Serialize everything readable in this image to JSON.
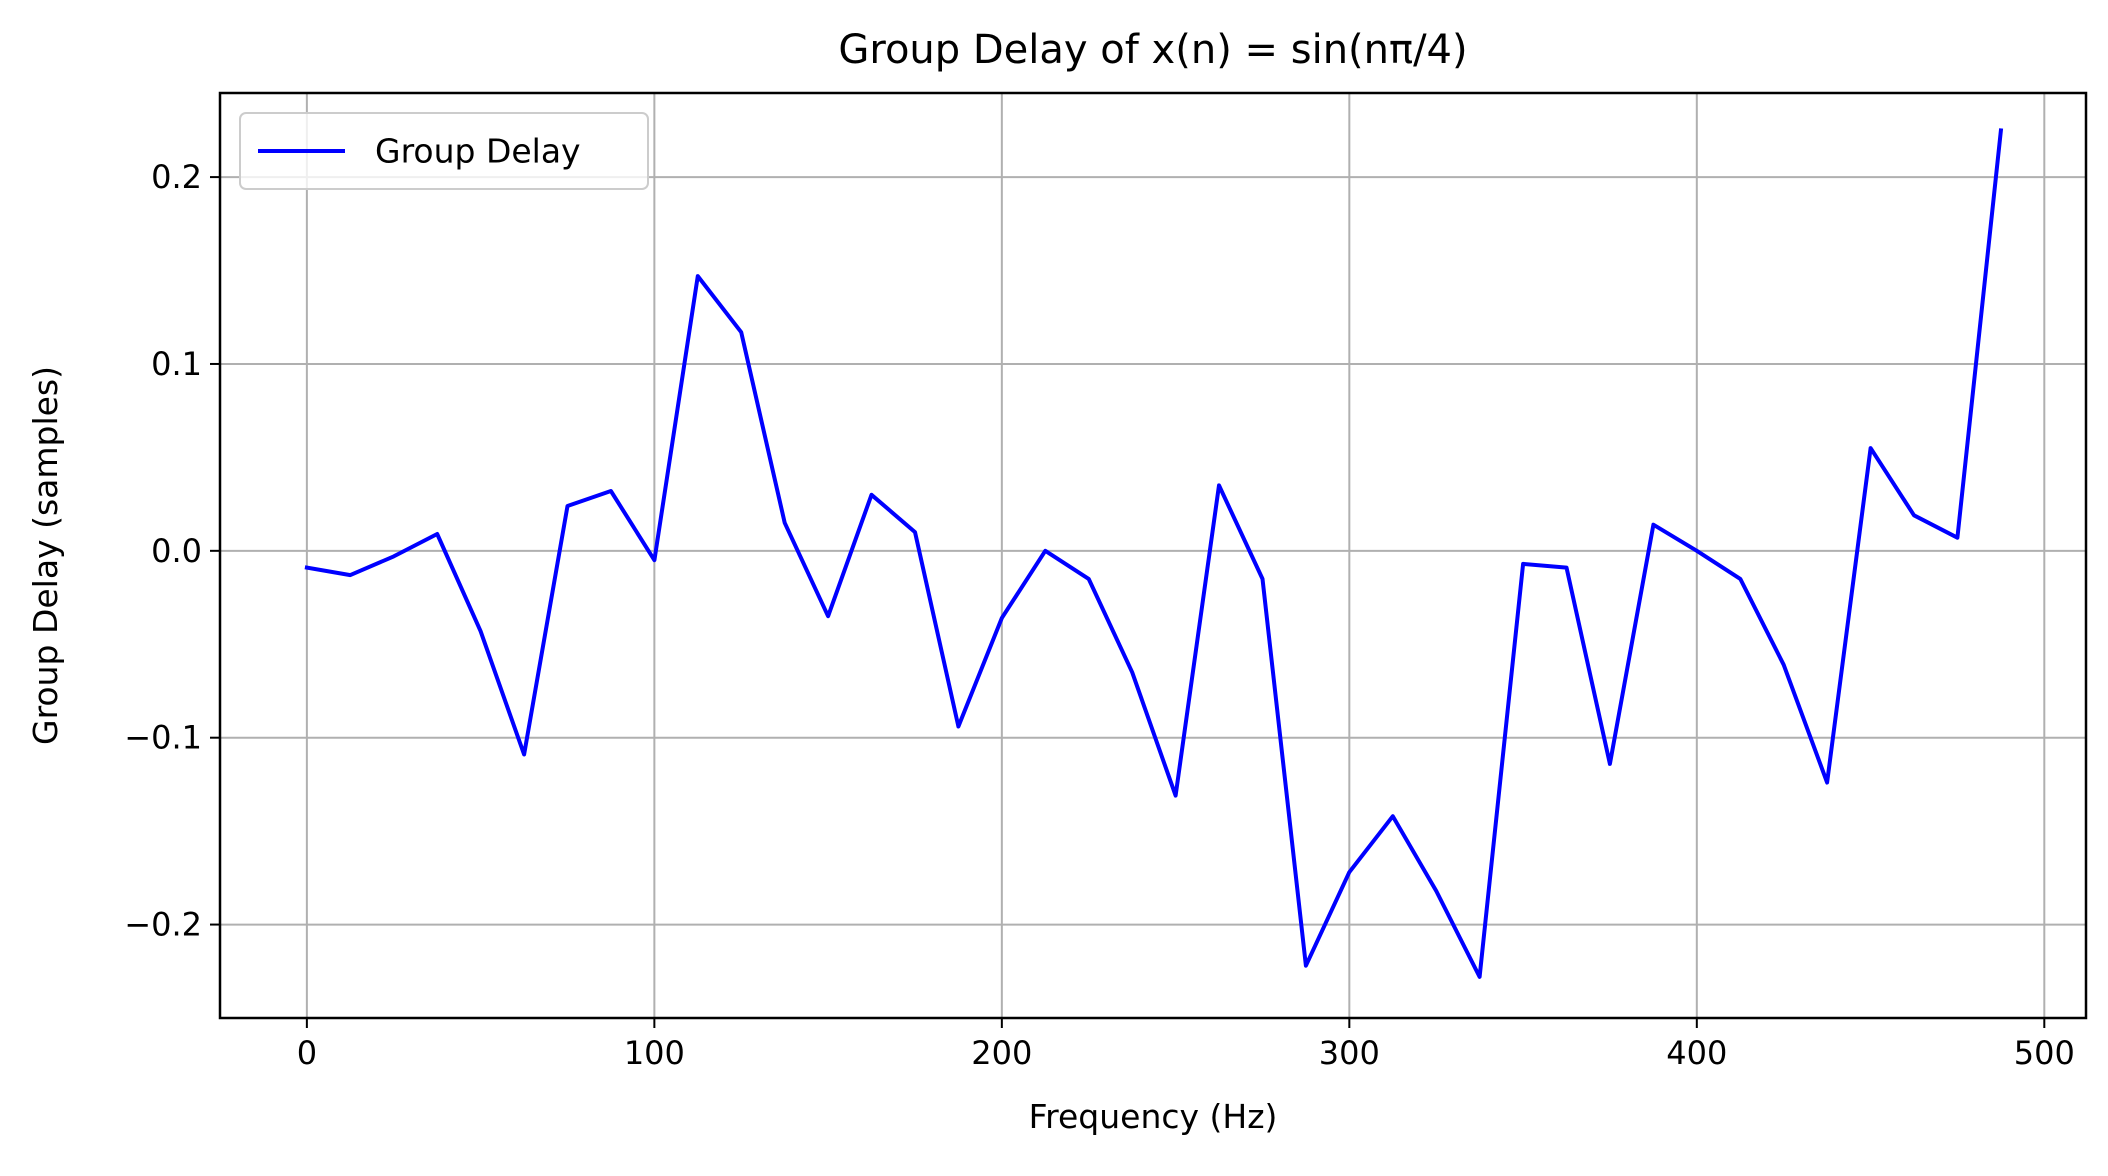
{
  "chart_data": {
    "type": "line",
    "title": "Group Delay of x(n) = sin(nπ/4)",
    "xlabel": "Frequency (Hz)",
    "ylabel": "Group Delay (samples)",
    "xlim": [
      -25,
      512
    ],
    "ylim": [
      -0.25,
      0.245
    ],
    "xticks": [
      0,
      100,
      200,
      300,
      400,
      500
    ],
    "xtick_labels": [
      "0",
      "100",
      "200",
      "300",
      "400",
      "500"
    ],
    "yticks": [
      -0.2,
      -0.1,
      0.0,
      0.1,
      0.2
    ],
    "ytick_labels": [
      "−0.2",
      "−0.1",
      "0.0",
      "0.1",
      "0.2"
    ],
    "grid": true,
    "legend_position": "top-left",
    "series": [
      {
        "name": "Group Delay",
        "color": "#0000ff",
        "x": [
          0,
          12.5,
          25,
          37.5,
          50,
          62.5,
          75,
          87.5,
          100,
          112.5,
          125,
          137.5,
          150,
          162.5,
          175,
          187.5,
          200,
          212.5,
          225,
          237.5,
          250,
          262.5,
          275,
          287.5,
          300,
          312.5,
          325,
          337.5,
          350,
          362.5,
          375,
          387.5,
          400,
          412.5,
          425,
          437.5,
          450,
          462.5,
          475,
          487.5
        ],
        "y": [
          -0.009,
          -0.013,
          -0.003,
          0.009,
          -0.043,
          -0.109,
          0.024,
          0.032,
          -0.005,
          0.147,
          0.117,
          0.015,
          -0.035,
          0.03,
          0.01,
          -0.094,
          -0.036,
          0.0,
          -0.015,
          -0.065,
          -0.131,
          0.035,
          -0.015,
          -0.222,
          -0.172,
          -0.142,
          -0.182,
          -0.228,
          -0.007,
          -0.009,
          -0.114,
          0.014,
          0.0,
          -0.015,
          -0.061,
          -0.124,
          0.055,
          0.019,
          0.007,
          0.225
        ]
      }
    ]
  }
}
